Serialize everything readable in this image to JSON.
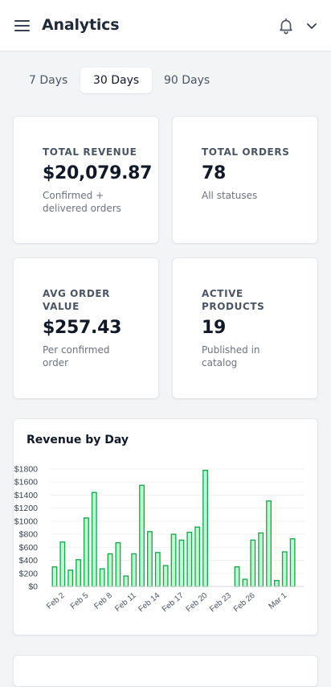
{
  "header": {
    "title": "Analytics",
    "menu_icon": "hamburger-icon",
    "bell_icon": "bell-icon",
    "dropdown_icon": "chevron-down-icon"
  },
  "tabs": [
    {
      "label": "7 Days",
      "active": false
    },
    {
      "label": "30 Days",
      "active": true
    },
    {
      "label": "90 Days",
      "active": false
    }
  ],
  "stats": [
    {
      "label": "TOTAL REVENUE",
      "value": "$20,079.87",
      "sub": "Confirmed + delivered orders"
    },
    {
      "label": "TOTAL ORDERS",
      "value": "78",
      "sub": "All statuses"
    },
    {
      "label": "AVG ORDER VALUE",
      "value": "$257.43",
      "sub": "Per confirmed order"
    },
    {
      "label": "ACTIVE PRODUCTS",
      "value": "19",
      "sub": "Published in catalog"
    }
  ],
  "colors": {
    "bar_fill": "#bbf7d0",
    "bar_stroke": "#16a34a",
    "accent": "#111827"
  },
  "chart_data": {
    "type": "bar",
    "title": "Revenue by Day",
    "categories": [
      "Feb 1",
      "Feb 2",
      "Feb 3",
      "Feb 4",
      "Feb 5",
      "Feb 6",
      "Feb 7",
      "Feb 8",
      "Feb 9",
      "Feb 10",
      "Feb 11",
      "Feb 12",
      "Feb 13",
      "Feb 14",
      "Feb 15",
      "Feb 16",
      "Feb 17",
      "Feb 18",
      "Feb 19",
      "Feb 20",
      "Feb 21",
      "Feb 22",
      "Feb 23",
      "Feb 24",
      "Feb 25",
      "Feb 26",
      "Feb 27",
      "Feb 28",
      "Feb 29",
      "Mar 1",
      "Mar 2",
      "Mar 3"
    ],
    "values": [
      300,
      680,
      250,
      410,
      1050,
      1440,
      270,
      500,
      670,
      160,
      500,
      1550,
      840,
      520,
      320,
      800,
      710,
      830,
      910,
      1780,
      0,
      0,
      0,
      300,
      110,
      710,
      820,
      1310,
      90,
      530,
      730,
      0
    ],
    "x_tick_labels": [
      "Feb 2",
      "Feb 5",
      "Feb 8",
      "Feb 11",
      "Feb 14",
      "Feb 17",
      "Feb 20",
      "Feb 23",
      "Feb 26",
      "Mar 1"
    ],
    "y_tick_labels": [
      "$0",
      "$200",
      "$400",
      "$600",
      "$800",
      "$1000",
      "$1200",
      "$1400",
      "$1600",
      "$1800"
    ],
    "ylim": [
      0,
      1800
    ],
    "grid": true,
    "xlabel": "",
    "ylabel": ""
  }
}
